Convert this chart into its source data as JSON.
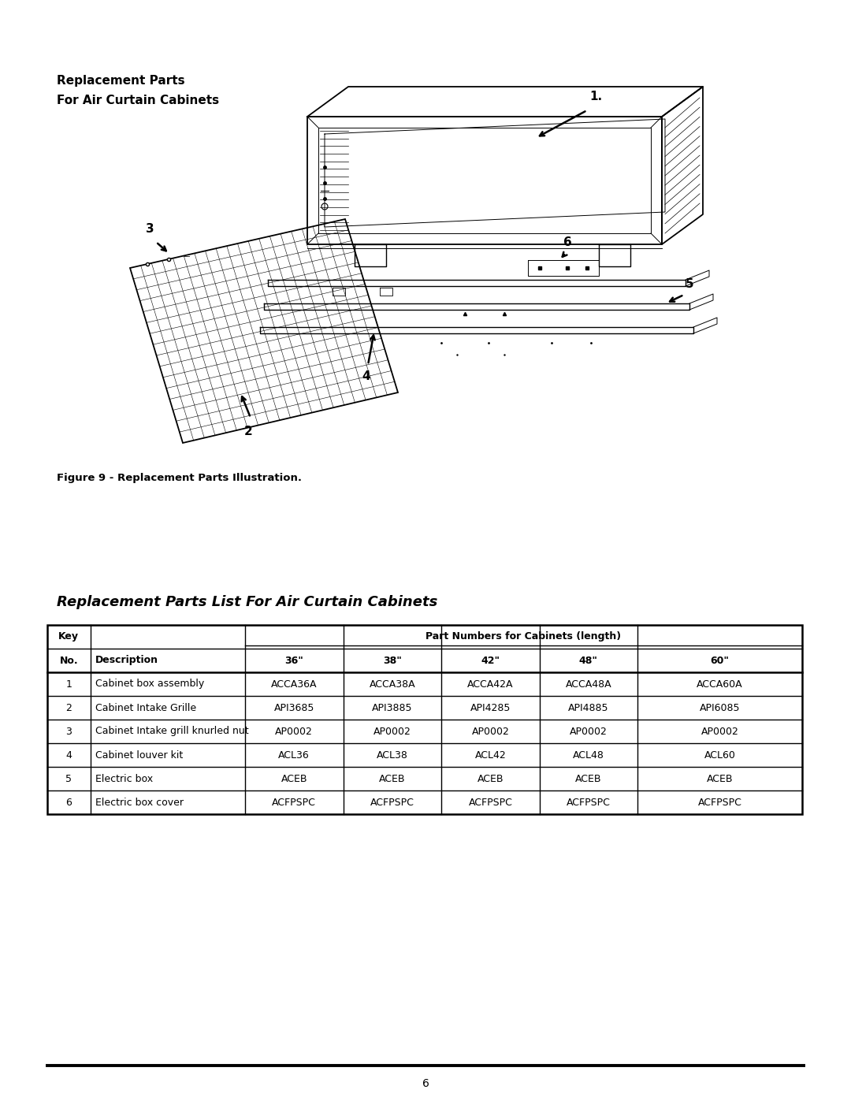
{
  "page_title_line1": "Replacement Parts",
  "page_title_line2": "For Air Curtain Cabinets",
  "figure_caption": "Figure 9 - Replacement Parts Illustration.",
  "table_title": "Replacement Parts List For Air Curtain Cabinets",
  "table_header_row2": [
    "No.",
    "Description",
    "36\"",
    "38\"",
    "42\"",
    "48\"",
    "60\""
  ],
  "table_rows": [
    [
      "1",
      "Cabinet box assembly",
      "ACCA36A",
      "ACCA38A",
      "ACCA42A",
      "ACCA48A",
      "ACCA60A"
    ],
    [
      "2",
      "Cabinet Intake Grille",
      "API3685",
      "API3885",
      "API4285",
      "API4885",
      "API6085"
    ],
    [
      "3",
      "Cabinet Intake grill knurled nut",
      "AP0002",
      "AP0002",
      "AP0002",
      "AP0002",
      "AP0002"
    ],
    [
      "4",
      "Cabinet louver kit",
      "ACL36",
      "ACL38",
      "ACL42",
      "ACL48",
      "ACL60"
    ],
    [
      "5",
      "Electric box",
      "ACEB",
      "ACEB",
      "ACEB",
      "ACEB",
      "ACEB"
    ],
    [
      "6",
      "Electric box cover",
      "ACFPSPC",
      "ACFPSPC",
      "ACFPSPC",
      "ACFPSPC",
      "ACFPSPC"
    ]
  ],
  "page_number": "6",
  "bg_color": "#ffffff",
  "text_color": "#000000"
}
